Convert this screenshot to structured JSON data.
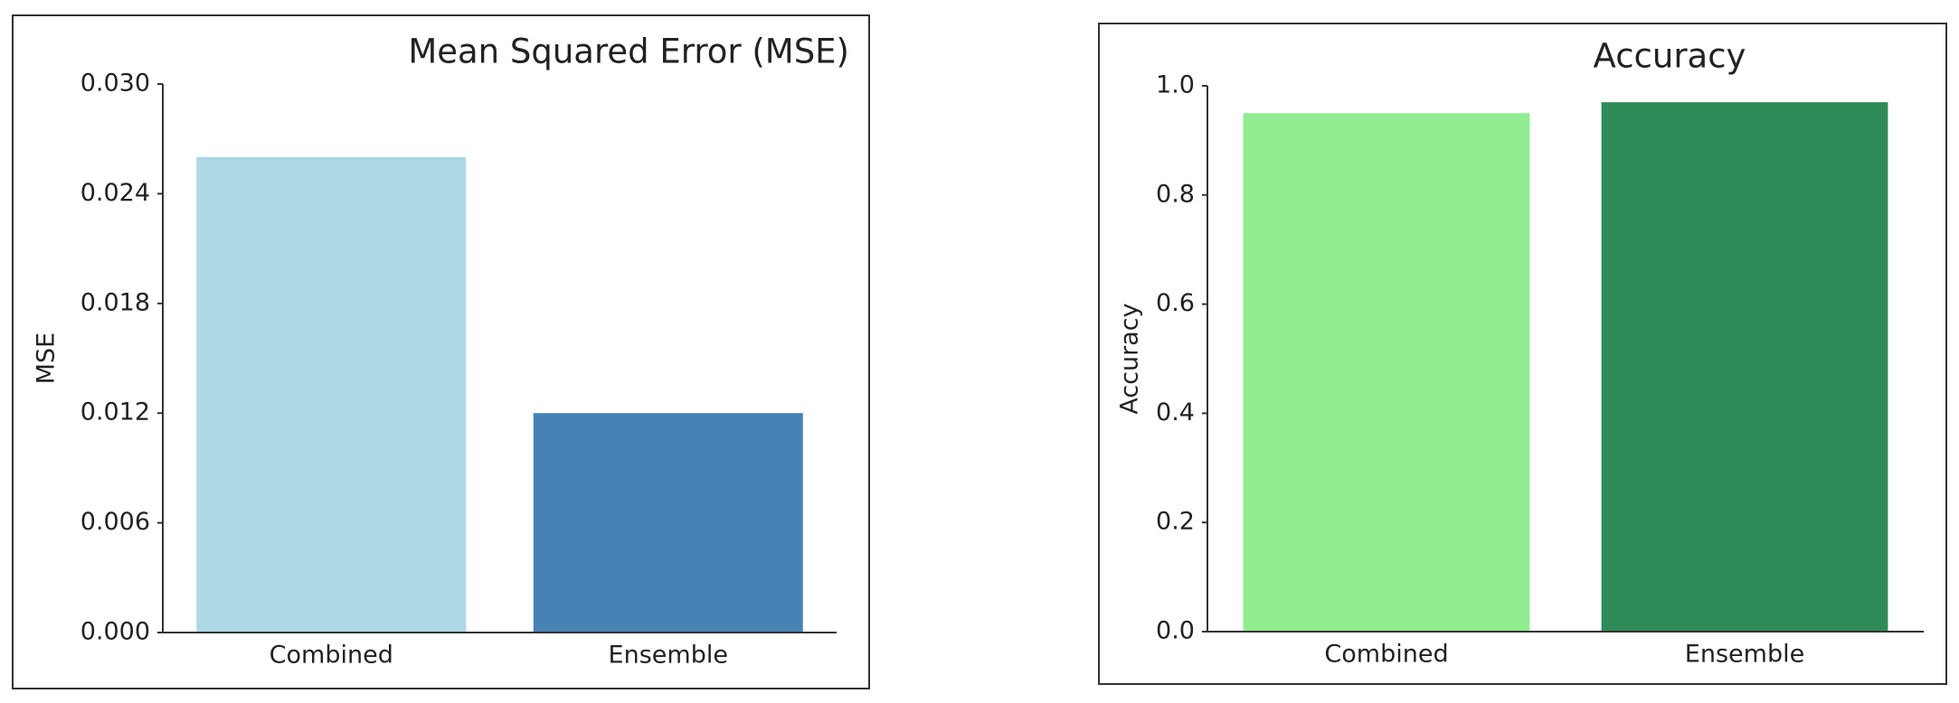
{
  "chart_data": [
    {
      "type": "bar",
      "title": "Mean Squared Error (MSE)",
      "y_label": "MSE",
      "categories": [
        "Combined",
        "Ensemble"
      ],
      "values": [
        0.026,
        0.012
      ],
      "colors": [
        "#add8e6",
        "#4682b4"
      ],
      "ylim": [
        0,
        0.03
      ],
      "yticks": [
        {
          "value": 0,
          "label": "0.000"
        },
        0.006,
        0.012,
        0.018,
        0.024,
        {
          "value": 0.03,
          "label": "0.030"
        }
      ]
    },
    {
      "type": "bar",
      "title": "Accuracy",
      "y_label": "Accuracy",
      "categories": [
        "Combined",
        "Ensemble"
      ],
      "values": [
        0.95,
        0.97
      ],
      "colors": [
        "#90ee90",
        "#2e8b57"
      ],
      "ylim": [
        0,
        1
      ],
      "yticks": [
        {
          "value": 0,
          "label": "0.0"
        },
        0.2,
        0.4,
        0.6,
        0.8,
        {
          "value": 1,
          "label": "1.0"
        }
      ]
    }
  ]
}
